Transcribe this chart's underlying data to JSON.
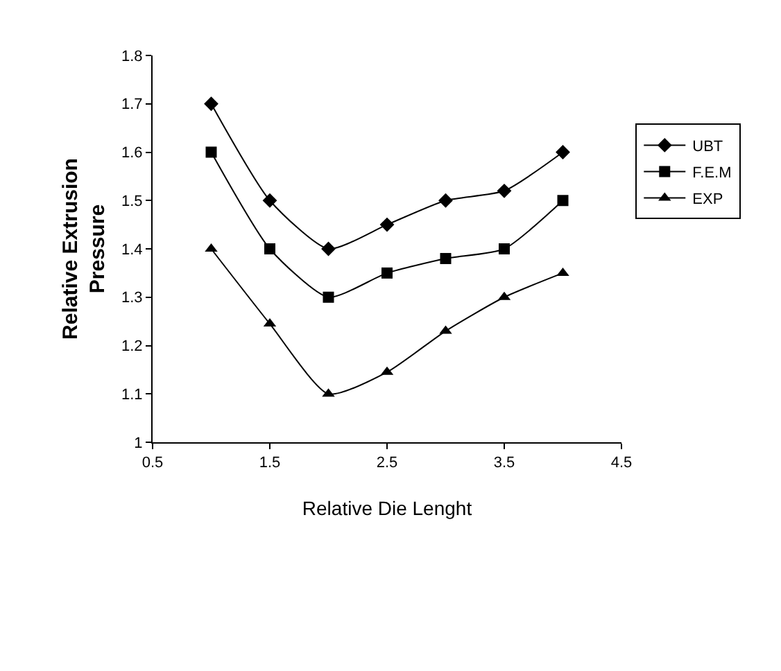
{
  "chart_data": {
    "type": "line",
    "xlabel": "Relative Die Lenght",
    "ylabel": "Relative Extrusion\nPressure",
    "x": [
      1,
      1.5,
      2,
      2.5,
      3,
      3.5,
      4
    ],
    "series": [
      {
        "name": "UBT",
        "color": "#000000",
        "marker": "diamond",
        "values": [
          1.7,
          1.5,
          1.4,
          1.45,
          1.5,
          1.52,
          1.6
        ]
      },
      {
        "name": "F.E.M",
        "color": "#000000",
        "marker": "square",
        "values": [
          1.6,
          1.4,
          1.3,
          1.35,
          1.38,
          1.4,
          1.5
        ]
      },
      {
        "name": "EXP",
        "color": "#000000",
        "marker": "triangle",
        "values": [
          1.4,
          1.245,
          1.1,
          1.145,
          1.23,
          1.3,
          1.35
        ]
      }
    ],
    "xlim": [
      0.5,
      4.5
    ],
    "xticks": [
      0.5,
      1.5,
      2.5,
      3.5,
      4.5
    ],
    "ylim": [
      1,
      1.8
    ],
    "yticks": [
      1,
      1.1,
      1.2,
      1.3,
      1.4,
      1.5,
      1.6,
      1.7,
      1.8
    ],
    "legend": "right",
    "line_style": "solid"
  }
}
